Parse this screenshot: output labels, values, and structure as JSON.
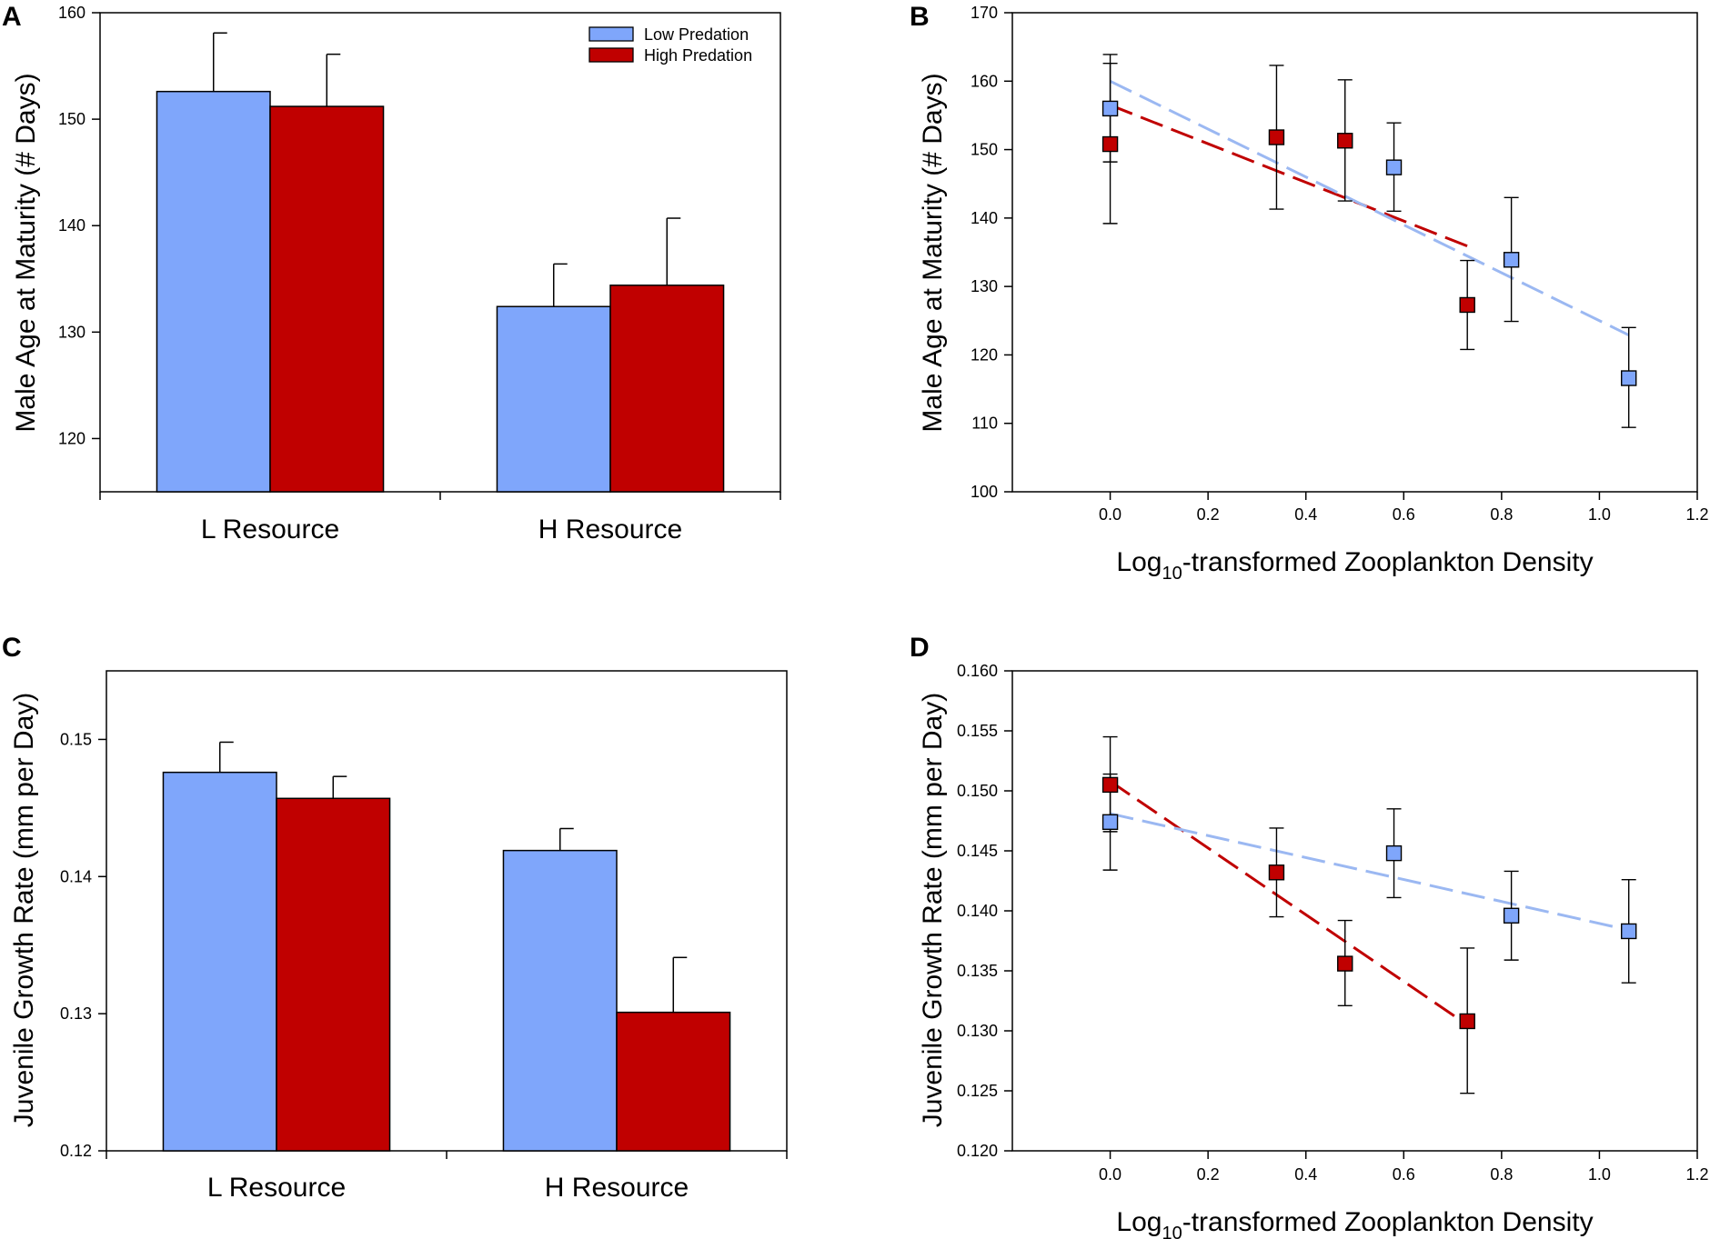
{
  "figure": {
    "title": "Four-panel figure: male age at maturity and juvenile growth rate vs resource level and zooplankton density"
  },
  "colors": {
    "low": "#7fa6fb",
    "high": "#c00000",
    "stroke": "#000000",
    "line_low": "#9bb8f2",
    "line_high": "#c00000"
  },
  "chart_data": [
    {
      "panel": "A",
      "type": "bar",
      "ylabel": "Male Age at Maturity (# Days)",
      "xlabel": "",
      "ylim": [
        115,
        160
      ],
      "yticks": [
        "120",
        "130",
        "140",
        "150",
        "160"
      ],
      "categories": [
        "L Resource",
        "H Resource"
      ],
      "series": [
        {
          "name": "Low Predation",
          "key": "low",
          "values": [
            152.6,
            132.4
          ],
          "err": [
            5.5,
            4.0
          ]
        },
        {
          "name": "High Predation",
          "key": "high",
          "values": [
            151.2,
            134.4
          ],
          "err": [
            4.9,
            6.3
          ]
        }
      ],
      "legend": {
        "position": "top-right",
        "entries": [
          "Low Predation",
          "High Predation"
        ]
      }
    },
    {
      "panel": "B",
      "type": "scatter",
      "ylabel": "Male Age at Maturity (# Days)",
      "xlabel_prefix": "Log",
      "xlabel_sub": "10",
      "xlabel_suffix": "-transformed Zooplankton Density",
      "xlim": [
        -0.2,
        1.2
      ],
      "ylim": [
        100,
        170
      ],
      "xticks": [
        "0.0",
        "0.2",
        "0.4",
        "0.6",
        "0.8",
        "1.0",
        "1.2"
      ],
      "yticks": [
        "100",
        "110",
        "120",
        "130",
        "140",
        "150",
        "160",
        "170"
      ],
      "series": [
        {
          "name": "Low Predation",
          "key": "low",
          "points": [
            {
              "x": 0.0,
              "y": 156.0,
              "lo": 148.2,
              "hi": 163.9
            },
            {
              "x": 0.58,
              "y": 147.4,
              "lo": 141.0,
              "hi": 153.9
            },
            {
              "x": 0.82,
              "y": 133.9,
              "lo": 124.9,
              "hi": 143.0
            },
            {
              "x": 1.06,
              "y": 116.6,
              "lo": 109.4,
              "hi": 124.0
            }
          ],
          "fit": {
            "x": [
              0.0,
              1.06
            ],
            "y": [
              160.0,
              122.9
            ]
          }
        },
        {
          "name": "High Predation",
          "key": "high",
          "points": [
            {
              "x": 0.0,
              "y": 150.8,
              "lo": 139.2,
              "hi": 162.6
            },
            {
              "x": 0.34,
              "y": 151.8,
              "lo": 141.3,
              "hi": 162.3
            },
            {
              "x": 0.48,
              "y": 151.3,
              "lo": 142.5,
              "hi": 160.2
            },
            {
              "x": 0.73,
              "y": 127.3,
              "lo": 120.8,
              "hi": 133.8
            }
          ],
          "fit": {
            "x": [
              0.0,
              0.73
            ],
            "y": [
              156.5,
              135.9
            ]
          }
        }
      ]
    },
    {
      "panel": "C",
      "type": "bar",
      "ylabel": "Juvenile Growth Rate (mm per Day)",
      "xlabel": "",
      "ylim": [
        0.12,
        0.155
      ],
      "yticks": [
        "0.12",
        "0.13",
        "0.14",
        "0.15"
      ],
      "categories": [
        "L Resource",
        "H Resource"
      ],
      "series": [
        {
          "name": "Low Predation",
          "key": "low",
          "values": [
            0.1476,
            0.1419
          ],
          "err": [
            0.0022,
            0.0016
          ]
        },
        {
          "name": "High Predation",
          "key": "high",
          "values": [
            0.1457,
            0.1301
          ],
          "err": [
            0.0016,
            0.004
          ]
        }
      ]
    },
    {
      "panel": "D",
      "type": "scatter",
      "ylabel": "Juvenile Growth Rate (mm per Day)",
      "xlabel_prefix": "Log",
      "xlabel_sub": "10",
      "xlabel_suffix": "-transformed Zooplankton Density",
      "xlim": [
        -0.2,
        1.2
      ],
      "ylim": [
        0.12,
        0.16
      ],
      "xticks": [
        "0.0",
        "0.2",
        "0.4",
        "0.6",
        "0.8",
        "1.0",
        "1.2"
      ],
      "yticks": [
        "0.120",
        "0.125",
        "0.130",
        "0.135",
        "0.140",
        "0.145",
        "0.150",
        "0.155",
        "0.160"
      ],
      "series": [
        {
          "name": "Low Predation",
          "key": "low",
          "points": [
            {
              "x": 0.0,
              "y": 0.1474,
              "lo": 0.1434,
              "hi": 0.1514
            },
            {
              "x": 0.58,
              "y": 0.1448,
              "lo": 0.1411,
              "hi": 0.1485
            },
            {
              "x": 0.82,
              "y": 0.1396,
              "lo": 0.1359,
              "hi": 0.1433
            },
            {
              "x": 1.06,
              "y": 0.1383,
              "lo": 0.134,
              "hi": 0.1426
            }
          ],
          "fit": {
            "x": [
              0.0,
              1.06
            ],
            "y": [
              0.1481,
              0.1384
            ]
          }
        },
        {
          "name": "High Predation",
          "key": "high",
          "points": [
            {
              "x": 0.0,
              "y": 0.1505,
              "lo": 0.1466,
              "hi": 0.1545
            },
            {
              "x": 0.34,
              "y": 0.1432,
              "lo": 0.1395,
              "hi": 0.1469
            },
            {
              "x": 0.48,
              "y": 0.1356,
              "lo": 0.1321,
              "hi": 0.1392
            },
            {
              "x": 0.73,
              "y": 0.1308,
              "lo": 0.1248,
              "hi": 0.1369
            }
          ],
          "fit": {
            "x": [
              0.0,
              0.73
            ],
            "y": [
              0.1508,
              0.1305
            ]
          }
        }
      ]
    }
  ]
}
